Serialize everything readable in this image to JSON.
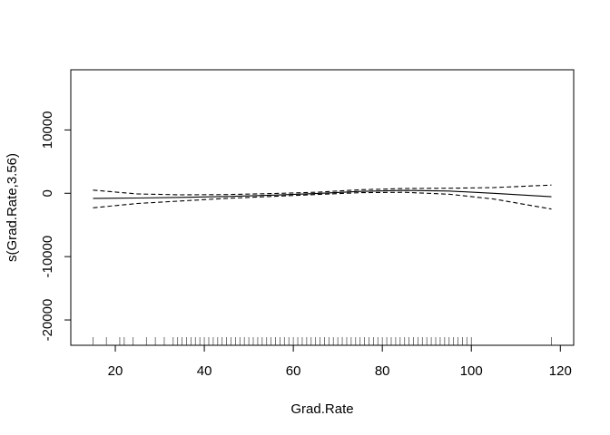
{
  "chart_data": {
    "type": "line",
    "title": "",
    "xlabel": "Grad.Rate",
    "ylabel": "s(Grad.Rate,3.56)",
    "xlim": [
      10,
      123
    ],
    "ylim": [
      -24000,
      19500
    ],
    "x_ticks": [
      20,
      40,
      60,
      80,
      100,
      120
    ],
    "x_tick_labels": [
      "20",
      "40",
      "60",
      "80",
      "100",
      "120"
    ],
    "y_ticks": [
      -20000,
      -10000,
      0,
      10000
    ],
    "y_tick_labels": [
      "-20000",
      "-10000",
      "0",
      "10000"
    ],
    "grid": false,
    "legend": "none",
    "x": [
      15,
      25,
      35,
      45,
      55,
      65,
      75,
      85,
      95,
      105,
      118
    ],
    "series": [
      {
        "role": "fit",
        "style": "solid",
        "values": [
          -800,
          -750,
          -650,
          -500,
          -300,
          -50,
          300,
          450,
          350,
          0,
          -550
        ]
      },
      {
        "role": "upper",
        "style": "dashed",
        "values": [
          500,
          -100,
          -250,
          -200,
          -50,
          150,
          550,
          750,
          800,
          900,
          1300
        ]
      },
      {
        "role": "lower",
        "style": "dashed",
        "values": [
          -2300,
          -1600,
          -1200,
          -800,
          -500,
          -200,
          100,
          150,
          -150,
          -900,
          -2500
        ]
      }
    ],
    "rug": [
      15,
      18,
      21,
      22,
      24,
      27,
      29,
      31,
      33,
      34,
      35,
      36,
      37,
      38,
      39,
      40,
      41,
      42,
      43,
      44,
      45,
      46,
      47,
      48,
      49,
      50,
      51,
      52,
      53,
      54,
      55,
      56,
      57,
      58,
      59,
      60,
      61,
      62,
      63,
      64,
      65,
      66,
      67,
      68,
      69,
      70,
      71,
      72,
      73,
      74,
      75,
      76,
      77,
      78,
      79,
      80,
      81,
      82,
      83,
      84,
      85,
      86,
      87,
      88,
      89,
      90,
      91,
      92,
      93,
      94,
      95,
      96,
      97,
      98,
      99,
      100,
      118
    ]
  }
}
